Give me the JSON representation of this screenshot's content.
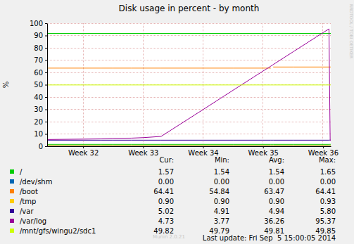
{
  "chart_data": {
    "type": "line",
    "title": "Disk usage in percent - by month",
    "y_label": "%",
    "x": [
      31.4,
      31.6,
      32.0,
      32.3,
      32.5,
      32.8,
      33.0,
      33.3,
      34.0,
      34.5,
      35.0,
      35.13,
      35.15,
      35.17,
      35.5,
      36.0,
      36.1,
      36.12,
      36.13
    ],
    "xlim": [
      31.4,
      36.13
    ],
    "xticks": [
      {
        "value": 32,
        "label": "Week 32"
      },
      {
        "value": 33,
        "label": "Week 33"
      },
      {
        "value": 34,
        "label": "Week 34"
      },
      {
        "value": 35,
        "label": "Week 35"
      },
      {
        "value": 36,
        "label": "Week 36"
      }
    ],
    "ylim": [
      0,
      100
    ],
    "yticks": [
      0,
      10,
      20,
      30,
      40,
      50,
      60,
      70,
      80,
      90,
      100
    ],
    "grid": true,
    "series": [
      {
        "name": "/",
        "color": "#00cc00",
        "values": [
          1.54,
          1.54,
          1.54,
          1.54,
          1.54,
          1.54,
          1.54,
          1.54,
          1.54,
          1.54,
          1.54,
          1.54,
          1.54,
          1.54,
          1.54,
          1.54,
          1.54,
          1.57,
          1.57
        ],
        "stats": [
          "1.57",
          "1.54",
          "1.54",
          "1.65"
        ]
      },
      {
        "name": "/dev/shm",
        "color": "#0066b3",
        "values": [
          0,
          0,
          0,
          0,
          0,
          0,
          0,
          0,
          0,
          0,
          0,
          0,
          0,
          0,
          0,
          0,
          0,
          0,
          0
        ],
        "stats": [
          "0.00",
          "0.00",
          "0.00",
          "0.00"
        ]
      },
      {
        "name": "/boot",
        "color": "#ff8000",
        "values": [
          63.5,
          63.5,
          63.5,
          63.5,
          63.5,
          63.5,
          63.5,
          63.5,
          63.5,
          63.5,
          63.5,
          63.5,
          null,
          64.41,
          64.41,
          64.41,
          64.41,
          64.41,
          64.41
        ],
        "stats": [
          "64.41",
          "54.84",
          "63.47",
          "64.41"
        ]
      },
      {
        "name": "/tmp",
        "color": "#ffcc00",
        "values": [
          0.9,
          0.9,
          0.9,
          0.9,
          0.9,
          0.9,
          0.9,
          0.9,
          0.9,
          0.9,
          0.9,
          0.9,
          0.9,
          0.9,
          0.9,
          0.9,
          0.9,
          0.9,
          0.9
        ],
        "stats": [
          "0.90",
          "0.90",
          "0.90",
          "0.93"
        ]
      },
      {
        "name": "/var",
        "color": "#330099",
        "values": [
          4.95,
          4.95,
          4.95,
          4.95,
          4.95,
          4.95,
          4.95,
          4.95,
          4.95,
          4.95,
          4.95,
          4.95,
          4.95,
          4.95,
          4.95,
          4.95,
          4.95,
          5.02,
          5.02
        ],
        "stats": [
          "5.02",
          "4.91",
          "4.94",
          "5.80"
        ]
      },
      {
        "name": "/var/log",
        "color": "#990099",
        "values": [
          5.5,
          5.6,
          5.8,
          6.0,
          6.5,
          6.6,
          7.0,
          8.0,
          29.8,
          45.5,
          61.1,
          65.1,
          65.7,
          66.4,
          76.7,
          92.3,
          95.37,
          4.73,
          4.73
        ],
        "stats": [
          "4.73",
          "3.77",
          "36.26",
          "95.37"
        ]
      },
      {
        "name": "/mnt/gfs/wingu2/sdc1",
        "color": "#ccff00",
        "values": [
          49.8,
          49.8,
          49.8,
          49.8,
          49.8,
          49.8,
          49.8,
          49.8,
          49.8,
          49.8,
          49.8,
          49.8,
          49.8,
          49.8,
          49.8,
          49.8,
          49.8,
          49.82,
          49.82
        ],
        "stats": [
          "49.82",
          "49.79",
          "49.81",
          "49.85"
        ]
      }
    ],
    "reference_lines": [
      {
        "value": 92,
        "color": "#00cc00"
      }
    ],
    "stats_columns": [
      "Cur:",
      "Min:",
      "Avg:",
      "Max:"
    ],
    "last_update": "Last update: Fri Sep  5 15:00:05 2014",
    "footer": "Munin 2.0.21",
    "side_text": "RRDTOOL / TOBI OETIKER"
  }
}
